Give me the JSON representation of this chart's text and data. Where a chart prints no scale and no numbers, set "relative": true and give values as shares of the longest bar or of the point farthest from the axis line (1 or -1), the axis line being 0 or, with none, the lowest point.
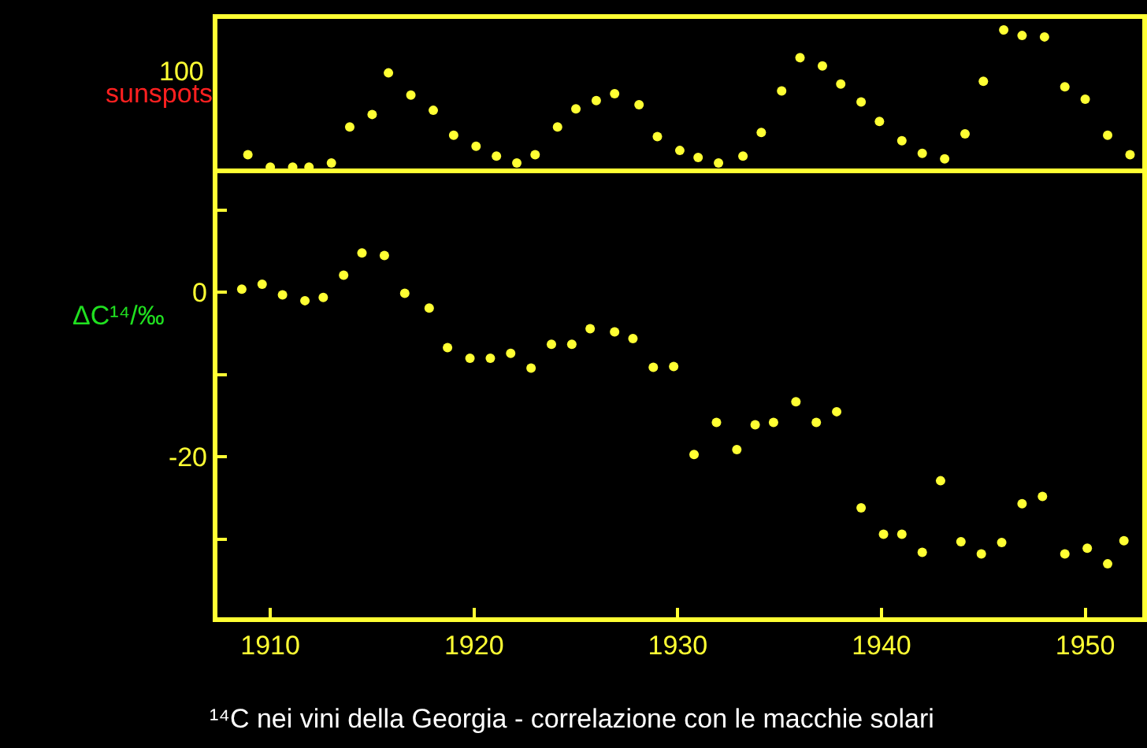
{
  "chart_data": [
    {
      "type": "scatter",
      "relative": true,
      "ylabel": "sunspots",
      "annotations": [
        "100"
      ],
      "marker": "circle",
      "grid": false,
      "xlim": [
        1907.4,
        1952.8
      ],
      "series": [
        {
          "color": "#ffff33",
          "x": [
            1908.9,
            1910.0,
            1911.1,
            1911.9,
            1913.0,
            1913.9,
            1915.0,
            1915.8,
            1916.9,
            1918.0,
            1919.0,
            1920.1,
            1921.1,
            1922.1,
            1923.0,
            1924.1,
            1925.0,
            1926.0,
            1926.9,
            1928.1,
            1929.0,
            1930.1,
            1931.0,
            1932.0,
            1933.2,
            1934.1,
            1935.1,
            1936.0,
            1937.1,
            1938.0,
            1939.0,
            1939.9,
            1941.0,
            1942.0,
            1943.1,
            1944.1,
            1945.0,
            1946.0,
            1946.9,
            1948.0,
            1949.0,
            1950.0,
            1951.1,
            1952.2
          ],
          "values": [
            0.1,
            0.01,
            0.01,
            0.01,
            0.04,
            0.3,
            0.39,
            0.69,
            0.53,
            0.42,
            0.24,
            0.16,
            0.09,
            0.04,
            0.1,
            0.3,
            0.43,
            0.49,
            0.54,
            0.46,
            0.23,
            0.13,
            0.08,
            0.04,
            0.09,
            0.26,
            0.56,
            0.8,
            0.74,
            0.61,
            0.48,
            0.34,
            0.2,
            0.11,
            0.07,
            0.25,
            0.63,
            1.0,
            0.96,
            0.95,
            0.59,
            0.5,
            0.24,
            0.1
          ]
        }
      ]
    },
    {
      "type": "scatter",
      "title": "¹⁴C nei vini della Georgia - correlazione con le macchie solari",
      "ylabel": "ΔC¹⁴/‰",
      "marker": "circle",
      "grid": false,
      "xlim": [
        1907.4,
        1952.8
      ],
      "xticks": [
        1910,
        1920,
        1930,
        1940,
        1950
      ],
      "ylim": [
        -39.5,
        14.5
      ],
      "yticks": [
        {
          "value": 10,
          "label": null
        },
        0,
        {
          "value": -10,
          "label": null
        },
        -20,
        {
          "value": -30,
          "label": null
        }
      ],
      "series": [
        {
          "color": "#ffff33",
          "x": [
            1908.6,
            1909.6,
            1910.6,
            1911.7,
            1912.6,
            1913.6,
            1914.5,
            1915.6,
            1916.6,
            1917.8,
            1918.7,
            1919.8,
            1920.8,
            1921.8,
            1922.8,
            1923.8,
            1924.8,
            1925.7,
            1926.9,
            1927.8,
            1928.8,
            1929.8,
            1930.8,
            1931.9,
            1932.9,
            1933.8,
            1934.7,
            1935.8,
            1936.8,
            1937.8,
            1939.0,
            1940.1,
            1941.0,
            1942.0,
            1942.9,
            1943.9,
            1944.9,
            1945.9,
            1946.9,
            1947.9,
            1949.0,
            1950.1,
            1951.1,
            1951.9
          ],
          "values": [
            0.4,
            1.0,
            -0.3,
            -1.0,
            -0.6,
            2.1,
            4.8,
            4.5,
            -0.1,
            -1.9,
            -6.7,
            -8.0,
            -8.0,
            -7.4,
            -9.2,
            -6.3,
            -6.3,
            -4.4,
            -4.8,
            -5.6,
            -9.1,
            -9.0,
            -19.7,
            -15.8,
            -19.1,
            -16.1,
            -15.8,
            -13.3,
            -15.8,
            -14.5,
            -26.2,
            -29.4,
            -29.4,
            -31.6,
            -22.9,
            -30.3,
            -31.8,
            -30.4,
            -25.7,
            -24.8,
            -31.8,
            -31.1,
            -33.0,
            -30.2
          ]
        }
      ]
    }
  ]
}
